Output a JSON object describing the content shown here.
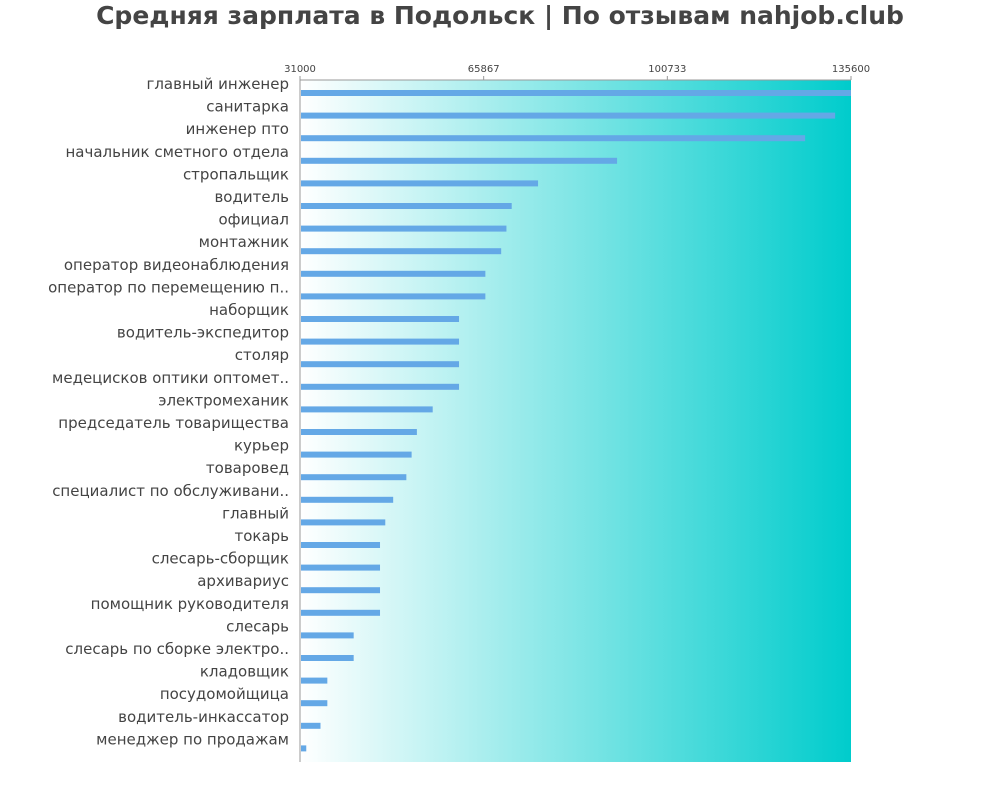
{
  "chart_data": {
    "type": "bar",
    "orientation": "horizontal",
    "title": "Средняя зарплата в Подольск | По отзывам nahjob.club",
    "xlim": [
      31000,
      135600
    ],
    "xticks": [
      "31000",
      "65867",
      "100733",
      "135600"
    ],
    "grid": false,
    "bar_color": "#64a8e6",
    "background_gradient": [
      "#ffffff",
      "#00cccc"
    ],
    "categories": [
      "главный инженер",
      "санитарка",
      "инженер пто",
      "начальник сметного отдела",
      "стропальщик",
      "водитель",
      "официал",
      "монтажник",
      "оператор видеонаблюдения",
      "оператор по перемещению п..",
      "наборщик",
      "водитель-экспедитор",
      "столяр",
      "медецисков оптики оптомет..",
      "электромеханик",
      "председатель товарищества",
      "курьер",
      "товаровед",
      "специалист по обслуживани..",
      "главный",
      "токарь",
      "слесарь-сборщик",
      "архивариус",
      "помощник руководителя",
      "слесарь",
      "слесарь по сборке электро..",
      "кладовщик",
      "посудомойщица",
      "водитель-инкассатор",
      "менеджер по продажам"
    ],
    "values": [
      135600,
      132400,
      126700,
      91000,
      76000,
      71000,
      70000,
      69000,
      66000,
      66000,
      61000,
      61000,
      61000,
      61000,
      56000,
      53000,
      52000,
      51000,
      48500,
      47000,
      46000,
      46000,
      46000,
      46000,
      41000,
      41000,
      36000,
      36000,
      34700,
      32000
    ]
  }
}
